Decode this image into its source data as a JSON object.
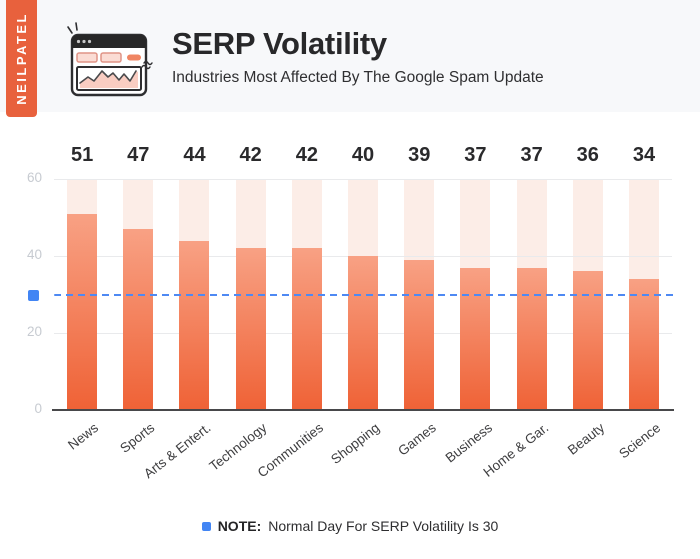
{
  "brand": {
    "name": "NEILPATEL"
  },
  "header": {
    "title": "SERP Volatility",
    "subtitle": "Industries Most Affected By The Google Spam Update"
  },
  "chart_data": {
    "type": "bar",
    "title": "SERP Volatility",
    "subtitle": "Industries Most Affected By The Google Spam Update",
    "categories": [
      "News",
      "Sports",
      "Arts & Entert.",
      "Technology",
      "Communities",
      "Shopping",
      "Games",
      "Business",
      "Home & Gar.",
      "Beauty",
      "Science"
    ],
    "values": [
      51,
      47,
      44,
      42,
      42,
      40,
      39,
      37,
      37,
      36,
      34
    ],
    "ylim": [
      0,
      60
    ],
    "yticks": [
      60,
      40,
      20,
      0
    ],
    "grid": true,
    "legend_position": "bottom",
    "reference_line": {
      "value": 30,
      "label": "Normal Day For SERP Volatility Is 30",
      "style": "dashed"
    },
    "colors": {
      "bar_top": "#F8A184",
      "bar_bottom": "#EF6236",
      "bar_background": "#FCEDE7",
      "reference": "#4E89F3",
      "axis": "#48484A",
      "gridline": "#E9EAEC",
      "tick_label": "#C7CBD1",
      "value_label": "#2A2A2C",
      "banner": "#E8613D",
      "note_marker": "#4285F4"
    }
  },
  "note": {
    "label": "NOTE:",
    "text": "Normal Day For SERP Volatility Is 30"
  }
}
